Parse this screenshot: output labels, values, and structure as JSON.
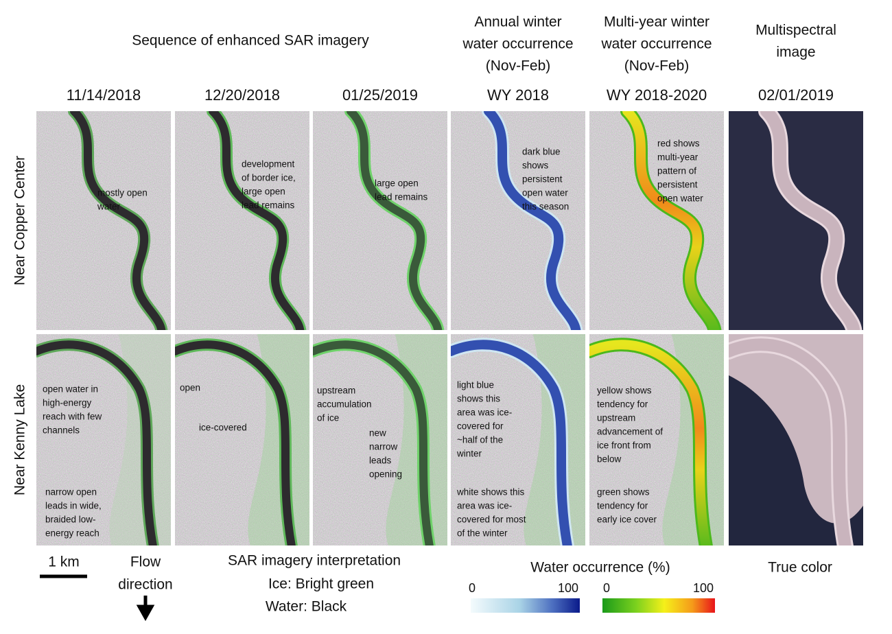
{
  "sar_title": "Sequence of enhanced SAR imagery",
  "columns": [
    {
      "date": "11/14/2018"
    },
    {
      "date": "12/20/2018"
    },
    {
      "date": "01/25/2019"
    },
    {
      "heading": [
        "Annual winter",
        "water occurrence",
        "(Nov-Feb)"
      ],
      "date": "WY 2018"
    },
    {
      "heading": [
        "Multi-year winter",
        "water occurrence",
        "(Nov-Feb)"
      ],
      "date": "WY 2018-2020"
    },
    {
      "heading": [
        "Multispectral",
        "image"
      ],
      "date": "02/01/2019"
    }
  ],
  "rows": [
    {
      "label": "Near Copper Center",
      "annotations": [
        [
          [
            "mostly open",
            "water"
          ]
        ],
        [
          [
            "development",
            "of border ice,",
            "large open",
            "lead remains"
          ]
        ],
        [
          [
            "large open",
            "lead remains"
          ]
        ],
        [
          [
            "dark blue",
            "shows",
            "persistent",
            "open water",
            "this season"
          ]
        ],
        [
          [
            "red shows",
            "multi-year",
            "pattern of",
            "persistent",
            "open water"
          ]
        ],
        []
      ]
    },
    {
      "label": "Near Kenny Lake",
      "annotations": [
        [
          [
            "open water in",
            "high-energy",
            "reach with few",
            "channels"
          ],
          [
            "narrow open",
            "leads in wide,",
            "braided low-",
            "energy reach"
          ]
        ],
        [
          [
            "open"
          ],
          [
            "ice-covered"
          ]
        ],
        [
          [
            "upstream",
            "accumulation",
            "of ice"
          ],
          [
            "new",
            "narrow",
            "leads",
            "opening"
          ]
        ],
        [
          [
            "light blue",
            "shows this",
            "area was ice-",
            "covered for",
            "~half of the",
            "winter"
          ],
          [
            "white shows this",
            "area was ice-",
            "covered for most",
            "of the winter"
          ]
        ],
        [
          [
            "yellow shows",
            "tendency for",
            "upstream",
            "advancement of",
            "ice front from",
            "below"
          ],
          [
            "green shows",
            "tendency for",
            "early ice cover"
          ]
        ],
        []
      ]
    }
  ],
  "footer": {
    "scale": "1 km",
    "flow": [
      "Flow",
      "direction"
    ],
    "interpretation": [
      "SAR imagery interpretation",
      "Ice: Bright green",
      "Water: Black"
    ],
    "colorbar_title": "Water occurrence (%)",
    "colorbar_annual_ticks": [
      "0",
      "100"
    ],
    "colorbar_multiyear_ticks": [
      "0",
      "100"
    ],
    "true_color": "True color"
  }
}
